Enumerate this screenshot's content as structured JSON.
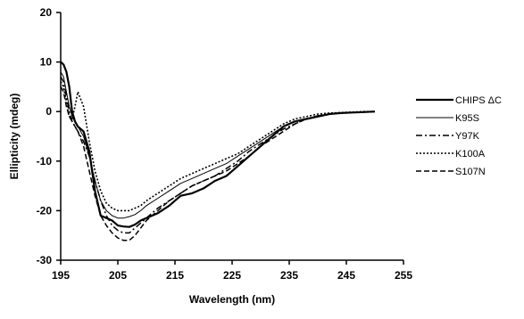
{
  "chart_data": {
    "type": "line",
    "title": "",
    "xlabel": "Wavelength (nm)",
    "ylabel": "Ellipticity (mdeg)",
    "xlim": [
      195,
      255
    ],
    "ylim": [
      -30,
      20
    ],
    "xticks": [
      195,
      205,
      215,
      225,
      235,
      245,
      255
    ],
    "yticks": [
      20,
      10,
      0,
      -10,
      -20,
      -30
    ],
    "xtick_labels": [
      "195",
      "205",
      "215",
      "225",
      "235",
      "245",
      "255"
    ],
    "ytick_labels": [
      "20",
      "10",
      "0",
      "-10",
      "-20",
      "-30"
    ],
    "grid": false,
    "legend_position": "right",
    "series": [
      {
        "name": "CHIPS ΔC",
        "color": "#000000",
        "style": "thick-solid",
        "x": [
          195,
          195.5,
          196,
          196.5,
          197,
          197.5,
          198,
          199,
          200,
          201,
          202,
          203,
          204,
          205,
          206,
          207,
          208,
          209,
          210,
          212,
          214,
          216,
          218,
          220,
          222,
          224,
          226,
          228,
          230,
          232,
          234,
          236,
          238,
          240,
          242,
          244,
          246,
          248,
          250
        ],
        "y": [
          10,
          9.5,
          8,
          5,
          0,
          -2,
          -3,
          -4,
          -8,
          -16,
          -21,
          -21.5,
          -22,
          -23,
          -23.2,
          -23.3,
          -22.8,
          -22,
          -21.5,
          -20.5,
          -19,
          -17,
          -16.5,
          -15.5,
          -14,
          -13,
          -11,
          -9,
          -7,
          -5,
          -3,
          -2,
          -1.5,
          -1,
          -0.5,
          -0.3,
          -0.2,
          -0.1,
          0
        ]
      },
      {
        "name": "K95S",
        "color": "#000000",
        "style": "thin-solid",
        "x": [
          195,
          195.5,
          196,
          196.5,
          197,
          198,
          199,
          200,
          201,
          202,
          203,
          204,
          205,
          206,
          207,
          208,
          209,
          210,
          212,
          214,
          216,
          218,
          220,
          222,
          224,
          226,
          228,
          230,
          232,
          234,
          236,
          238,
          240,
          242,
          244,
          246,
          248,
          250
        ],
        "y": [
          8,
          7,
          4,
          1,
          -1,
          -3,
          -5,
          -9,
          -14,
          -18,
          -20,
          -21,
          -21.5,
          -21.5,
          -21.2,
          -20.8,
          -20,
          -19,
          -17.5,
          -16,
          -14.5,
          -13.5,
          -12.5,
          -11.5,
          -10.5,
          -9,
          -7.5,
          -6,
          -4.5,
          -3,
          -2,
          -1.5,
          -0.8,
          -0.5,
          -0.3,
          -0.2,
          -0.1,
          0
        ]
      },
      {
        "name": "Y97K",
        "color": "#000000",
        "style": "dash-dot",
        "x": [
          195,
          195.5,
          196,
          196.5,
          197,
          198,
          199,
          200,
          201,
          202,
          203,
          204,
          205,
          206,
          207,
          208,
          209,
          210,
          212,
          214,
          216,
          218,
          220,
          222,
          224,
          226,
          228,
          230,
          232,
          234,
          236,
          238,
          240,
          242,
          244,
          246,
          248,
          250
        ],
        "y": [
          7,
          6,
          3,
          0,
          -2,
          -4,
          -6,
          -9,
          -14,
          -18,
          -21,
          -23,
          -24,
          -24.5,
          -24.5,
          -23.5,
          -22.5,
          -21.5,
          -19.5,
          -18,
          -16.5,
          -15,
          -14,
          -13,
          -11.5,
          -10,
          -8,
          -6.5,
          -5,
          -3.5,
          -2.5,
          -1.5,
          -1,
          -0.5,
          -0.3,
          -0.2,
          -0.1,
          0
        ]
      },
      {
        "name": "K100A",
        "color": "#000000",
        "style": "dotted",
        "x": [
          195,
          195.5,
          196,
          196.5,
          197,
          197.5,
          198,
          199,
          200,
          201,
          202,
          203,
          204,
          205,
          206,
          207,
          208,
          209,
          210,
          212,
          214,
          216,
          218,
          220,
          222,
          224,
          226,
          228,
          230,
          232,
          234,
          236,
          238,
          240,
          242,
          244,
          246,
          248,
          250
        ],
        "y": [
          6,
          5,
          2,
          -1,
          -1.5,
          1,
          4,
          1,
          -6,
          -12,
          -16,
          -18.5,
          -19.5,
          -20,
          -20,
          -20,
          -19.5,
          -19,
          -18,
          -16.5,
          -15,
          -13.5,
          -12.5,
          -11.5,
          -10.5,
          -9.5,
          -8.5,
          -7,
          -5.5,
          -4,
          -2.5,
          -1.5,
          -1,
          -0.5,
          -0.3,
          -0.2,
          -0.1,
          0,
          0
        ]
      },
      {
        "name": "S107N",
        "color": "#000000",
        "style": "dashed",
        "x": [
          195,
          195.5,
          196,
          196.5,
          197,
          198,
          199,
          200,
          201,
          202,
          203,
          204,
          205,
          206,
          207,
          208,
          209,
          210,
          212,
          214,
          216,
          218,
          220,
          222,
          224,
          226,
          228,
          230,
          232,
          234,
          236,
          238,
          240,
          242,
          244,
          246,
          248,
          250
        ],
        "y": [
          5,
          4,
          1,
          -1,
          -2,
          -4,
          -7,
          -12,
          -17,
          -21,
          -23,
          -24.5,
          -25.5,
          -26,
          -26,
          -25,
          -23.5,
          -22,
          -20,
          -18,
          -16.5,
          -15,
          -14,
          -13,
          -12,
          -10.5,
          -9,
          -7,
          -5.5,
          -4,
          -2.5,
          -1.5,
          -1,
          -0.5,
          -0.3,
          -0.2,
          -0.1,
          0
        ]
      }
    ]
  }
}
